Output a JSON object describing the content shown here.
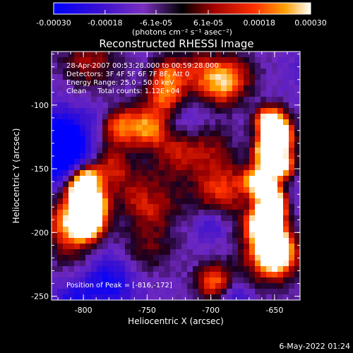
{
  "colorbar": {
    "ticks": [
      "-0.00030",
      "-0.00018",
      "-6.1e-05",
      "6.1e-05",
      "0.00018",
      "0.00030"
    ],
    "tick_values": [
      -0.0003,
      -0.00018,
      -6.1e-05,
      6.1e-05,
      0.00018,
      0.0003
    ],
    "range": [
      -0.0003,
      0.0003
    ],
    "units_label": "(photons cm⁻² s⁻¹ asec⁻²)"
  },
  "plot": {
    "title": "Reconstructed RHESSI Image",
    "xlabel": "Heliocentric X (arcsec)",
    "ylabel": "Heliocentric Y (arcsec)",
    "xlim": [
      -825,
      -630
    ],
    "ylim": [
      -253,
      -58
    ],
    "xticks": [
      "-800",
      "-750",
      "-700",
      "-650"
    ],
    "xtick_values": [
      -800,
      -750,
      -700,
      -650
    ],
    "yticks": [
      "-100",
      "-150",
      "-200",
      "-250"
    ],
    "ytick_values": [
      -100,
      -150,
      -200,
      -250
    ],
    "annotations": [
      "28-Apr-2007 00:53:28.000 to 00:59:28.000",
      "Detectors: 3F 4F 5F 6F 7F 8F, Att 0",
      "Energy Range: 25.0 - 50.0 keV",
      "Clean     Total counts: 1.12E+04"
    ],
    "peak_label": "Position of Peak = [-816,-172]",
    "peak": [
      -816,
      -172
    ]
  },
  "footer": {
    "date": "6-May-2022 01:24"
  },
  "colors": {
    "background": "#000000",
    "foreground": "#ffffff"
  }
}
